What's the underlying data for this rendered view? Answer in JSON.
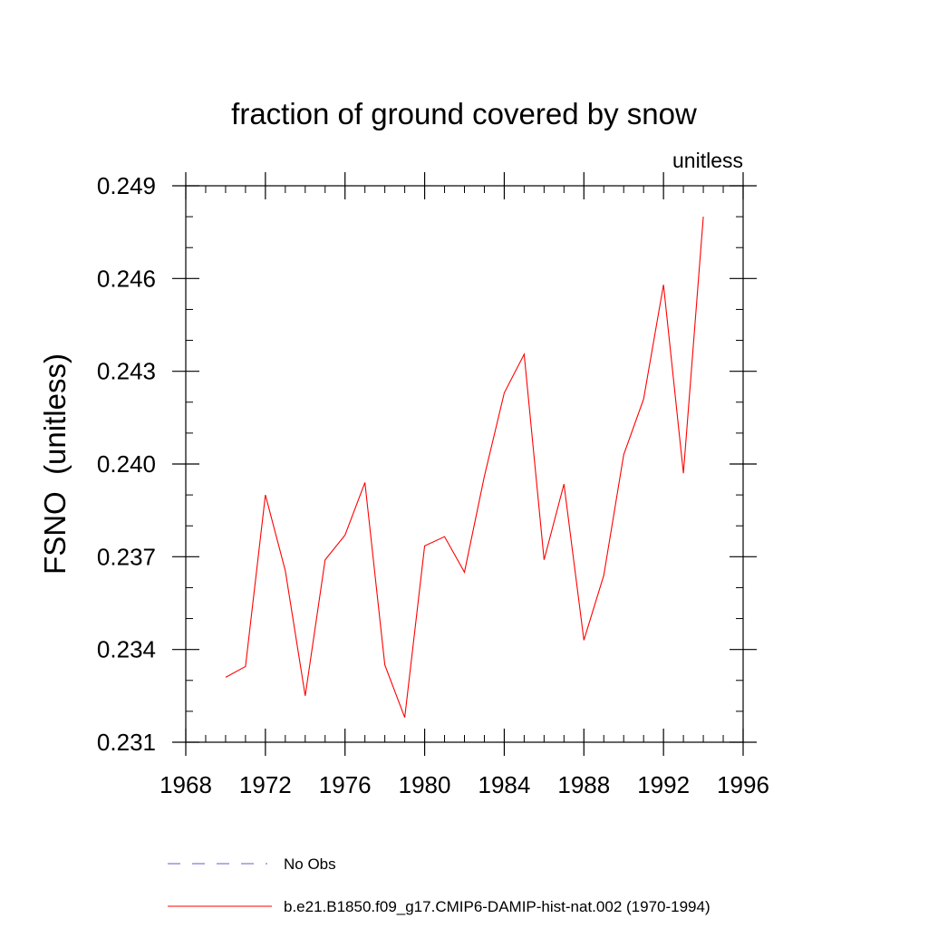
{
  "chart_data": {
    "type": "line",
    "title": "fraction of ground covered by snow",
    "units_label": "unitless",
    "ylabel": "FSNO  (unitless)",
    "xlabel": "",
    "xlim": [
      1968,
      1996
    ],
    "ylim": [
      0.231,
      0.249
    ],
    "x_ticks": [
      1968,
      1972,
      1976,
      1980,
      1984,
      1988,
      1992,
      1996
    ],
    "x_tick_labels": [
      "1968",
      "1972",
      "1976",
      "1980",
      "1984",
      "1988",
      "1992",
      "1996"
    ],
    "x_minor_step": 1,
    "y_ticks": [
      0.231,
      0.234,
      0.237,
      0.24,
      0.243,
      0.246,
      0.249
    ],
    "y_tick_labels": [
      "0.231",
      "0.234",
      "0.237",
      "0.240",
      "0.243",
      "0.246",
      "0.249"
    ],
    "y_minor_step": 0.001,
    "grid": false,
    "legend_position": "bottom",
    "series": [
      {
        "name": "b.e21.B1850.f09_g17.CMIP6-DAMIP-hist-nat.002 (1970-1994)",
        "color": "#ff0000",
        "style": "solid",
        "x": [
          1970,
          1971,
          1972,
          1973,
          1974,
          1975,
          1976,
          1977,
          1978,
          1979,
          1980,
          1981,
          1982,
          1983,
          1984,
          1985,
          1986,
          1987,
          1988,
          1989,
          1990,
          1991,
          1992,
          1993,
          1994
        ],
        "values": [
          0.2331,
          0.23345,
          0.239,
          0.23655,
          0.2325,
          0.2369,
          0.2377,
          0.2394,
          0.2335,
          0.2318,
          0.23735,
          0.23765,
          0.2365,
          0.2396,
          0.2423,
          0.24355,
          0.2369,
          0.23935,
          0.2343,
          0.2364,
          0.2403,
          0.2421,
          0.2458,
          0.2397,
          0.248
        ]
      }
    ],
    "legend": [
      {
        "name": "No Obs",
        "color": "#6a5acd",
        "style": "dashed"
      },
      {
        "name": "b.e21.B1850.f09_g17.CMIP6-DAMIP-hist-nat.002 (1970-1994)",
        "color": "#ff0000",
        "style": "solid"
      }
    ]
  }
}
